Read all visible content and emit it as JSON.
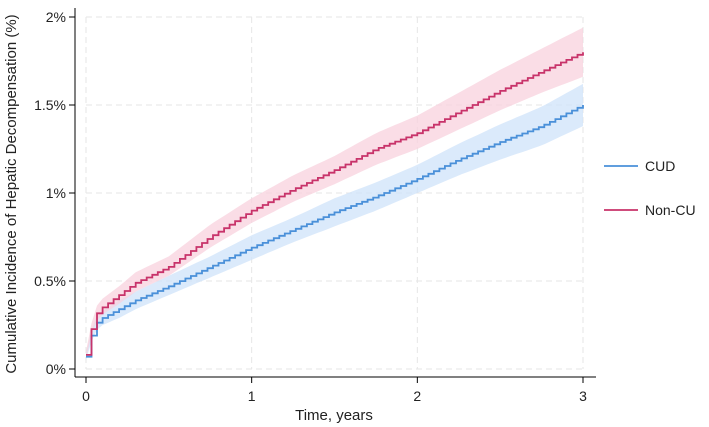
{
  "chart_data": {
    "type": "line",
    "title": "",
    "xlabel": "Time, years",
    "ylabel": "Cumulative Incidence of Hepatic Decompensation (%)",
    "xlim": [
      0,
      3
    ],
    "ylim": [
      0,
      2
    ],
    "x_ticks": [
      0,
      1,
      2,
      3
    ],
    "x_tick_labels": [
      "0",
      "1",
      "2",
      "3"
    ],
    "y_ticks": [
      0,
      0.5,
      1,
      1.5,
      2
    ],
    "y_tick_labels": [
      "0%",
      "0.5%",
      "1%",
      "1.5%",
      "2%"
    ],
    "grid": true,
    "legend_position": "right",
    "series": [
      {
        "name": "CUD",
        "color": "#4a90d9",
        "band_color": "#cfe3fa",
        "x": [
          0,
          0.05,
          0.1,
          0.2,
          0.3,
          0.5,
          0.75,
          1.0,
          1.25,
          1.5,
          1.75,
          2.0,
          2.25,
          2.5,
          2.75,
          3.0
        ],
        "values": [
          0.07,
          0.25,
          0.29,
          0.34,
          0.39,
          0.47,
          0.58,
          0.69,
          0.79,
          0.89,
          0.98,
          1.08,
          1.19,
          1.29,
          1.38,
          1.5
        ],
        "lower": [
          0.05,
          0.21,
          0.25,
          0.29,
          0.34,
          0.42,
          0.52,
          0.62,
          0.72,
          0.81,
          0.9,
          1.0,
          1.1,
          1.19,
          1.27,
          1.38
        ],
        "upper": [
          0.09,
          0.29,
          0.33,
          0.39,
          0.44,
          0.53,
          0.64,
          0.76,
          0.86,
          0.97,
          1.06,
          1.16,
          1.28,
          1.39,
          1.49,
          1.62
        ]
      },
      {
        "name": "Non-CU",
        "color": "#c8336a",
        "band_color": "#f8d1dd",
        "x": [
          0,
          0.05,
          0.1,
          0.2,
          0.3,
          0.5,
          0.75,
          1.0,
          1.25,
          1.5,
          1.75,
          2.0,
          2.25,
          2.5,
          2.75,
          3.0
        ],
        "values": [
          0.08,
          0.3,
          0.35,
          0.42,
          0.49,
          0.58,
          0.75,
          0.9,
          1.02,
          1.13,
          1.25,
          1.34,
          1.46,
          1.58,
          1.69,
          1.8
        ],
        "lower": [
          0.06,
          0.26,
          0.31,
          0.37,
          0.44,
          0.53,
          0.69,
          0.83,
          0.95,
          1.05,
          1.16,
          1.25,
          1.36,
          1.47,
          1.57,
          1.66
        ],
        "upper": [
          0.1,
          0.34,
          0.4,
          0.47,
          0.55,
          0.64,
          0.82,
          0.97,
          1.1,
          1.21,
          1.34,
          1.44,
          1.57,
          1.7,
          1.82,
          1.94
        ]
      }
    ]
  }
}
